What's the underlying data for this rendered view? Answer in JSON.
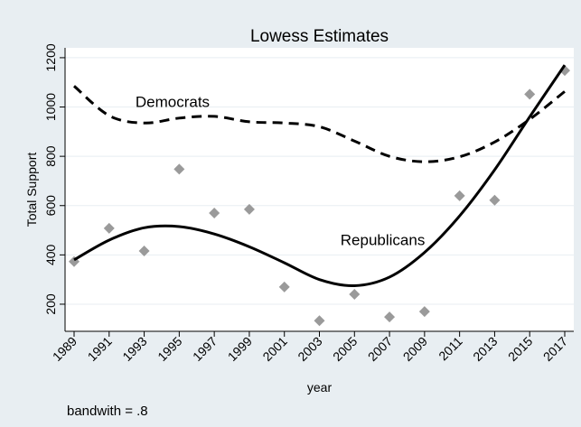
{
  "chart_data": {
    "type": "line",
    "title": "Lowess Estimates",
    "xlabel": "year",
    "ylabel": "Total Support",
    "note": "bandwith = .8",
    "xlim": [
      1989,
      2017
    ],
    "ylim": [
      90,
      1240
    ],
    "x_ticks": [
      1989,
      1991,
      1993,
      1995,
      1997,
      1999,
      2001,
      2003,
      2005,
      2007,
      2009,
      2011,
      2013,
      2015,
      2017
    ],
    "y_ticks": [
      200,
      400,
      600,
      800,
      1000,
      1200
    ],
    "grid": "horizontal",
    "legend": "none",
    "annotations": [
      {
        "text": "Democrats",
        "x": 1992.5,
        "y": 1000
      },
      {
        "text": "Republicans",
        "x": 2004.2,
        "y": 440
      }
    ],
    "series": [
      {
        "name": "Democrats",
        "line_style": "dashed",
        "color": "#000000",
        "x": [
          1989,
          1991,
          1993,
          1995,
          1997,
          1999,
          2001,
          2003,
          2005,
          2007,
          2009,
          2011,
          2013,
          2015,
          2017
        ],
        "values": [
          1085,
          965,
          935,
          955,
          962,
          940,
          935,
          920,
          862,
          800,
          778,
          798,
          858,
          950,
          1063
        ]
      },
      {
        "name": "Republicans",
        "line_style": "solid",
        "color": "#000000",
        "x": [
          1989,
          1991,
          1993,
          1995,
          1997,
          1999,
          2001,
          2003,
          2005,
          2007,
          2009,
          2011,
          2013,
          2015,
          2017
        ],
        "values": [
          380,
          460,
          510,
          515,
          485,
          433,
          368,
          300,
          275,
          310,
          410,
          558,
          745,
          960,
          1170
        ]
      }
    ],
    "scatter": {
      "color": "#9a9a9a",
      "marker": "diamond",
      "x": [
        1989,
        1991,
        1993,
        1995,
        1997,
        1999,
        2001,
        2003,
        2005,
        2007,
        2009,
        2011,
        2013,
        2015,
        2017
      ],
      "values": [
        373,
        508,
        416,
        748,
        570,
        585,
        270,
        133,
        240,
        148,
        170,
        640,
        622,
        1052,
        1148
      ]
    },
    "colors": {
      "background": "#e8eef2",
      "plot_background": "#ffffff",
      "grid": "#e8eef2"
    }
  }
}
